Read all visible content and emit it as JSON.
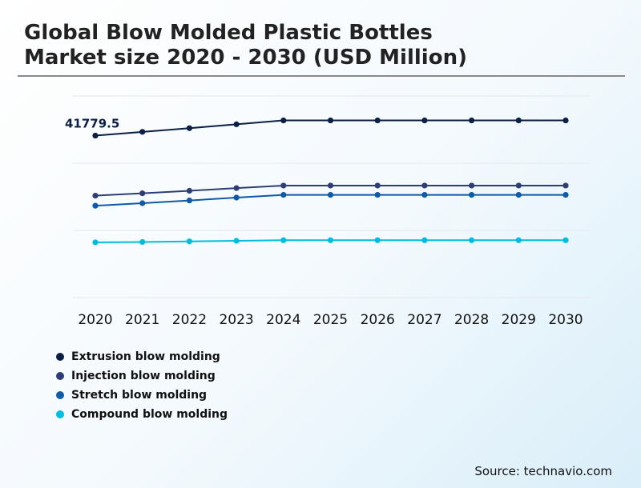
{
  "title_line1": "Global Blow Molded Plastic Bottles",
  "title_line2": "Market size 2020 - 2030 (USD Million)",
  "source": "Source: technavio.com",
  "chart_data": {
    "type": "line",
    "x": [
      "2020",
      "2021",
      "2022",
      "2023",
      "2024",
      "2025",
      "2026",
      "2027",
      "2028",
      "2029",
      "2030"
    ],
    "ylim": [
      0,
      52000
    ],
    "grid": true,
    "legend_position": "bottom-left",
    "series": [
      {
        "name": "Extrusion blow molding",
        "color": "#0b1f45",
        "values": [
          41779.5,
          42750,
          43700,
          44700,
          45700,
          45700,
          45700,
          45700,
          45700,
          45700,
          45700
        ]
      },
      {
        "name": "Injection blow molding",
        "color": "#2c3e73",
        "values": [
          26300,
          26900,
          27550,
          28250,
          28900,
          28900,
          28900,
          28900,
          28900,
          28900,
          28900
        ]
      },
      {
        "name": "Stretch blow molding",
        "color": "#0d5aa7",
        "values": [
          23700,
          24350,
          25050,
          25800,
          26500,
          26500,
          26500,
          26500,
          26500,
          26500,
          26500
        ]
      },
      {
        "name": "Compound blow molding",
        "color": "#00bde0",
        "values": [
          14250,
          14350,
          14500,
          14650,
          14800,
          14800,
          14800,
          14800,
          14800,
          14800,
          14800
        ]
      }
    ],
    "annotations": [
      {
        "series": 0,
        "index": 0,
        "text": "41779.5"
      }
    ]
  }
}
